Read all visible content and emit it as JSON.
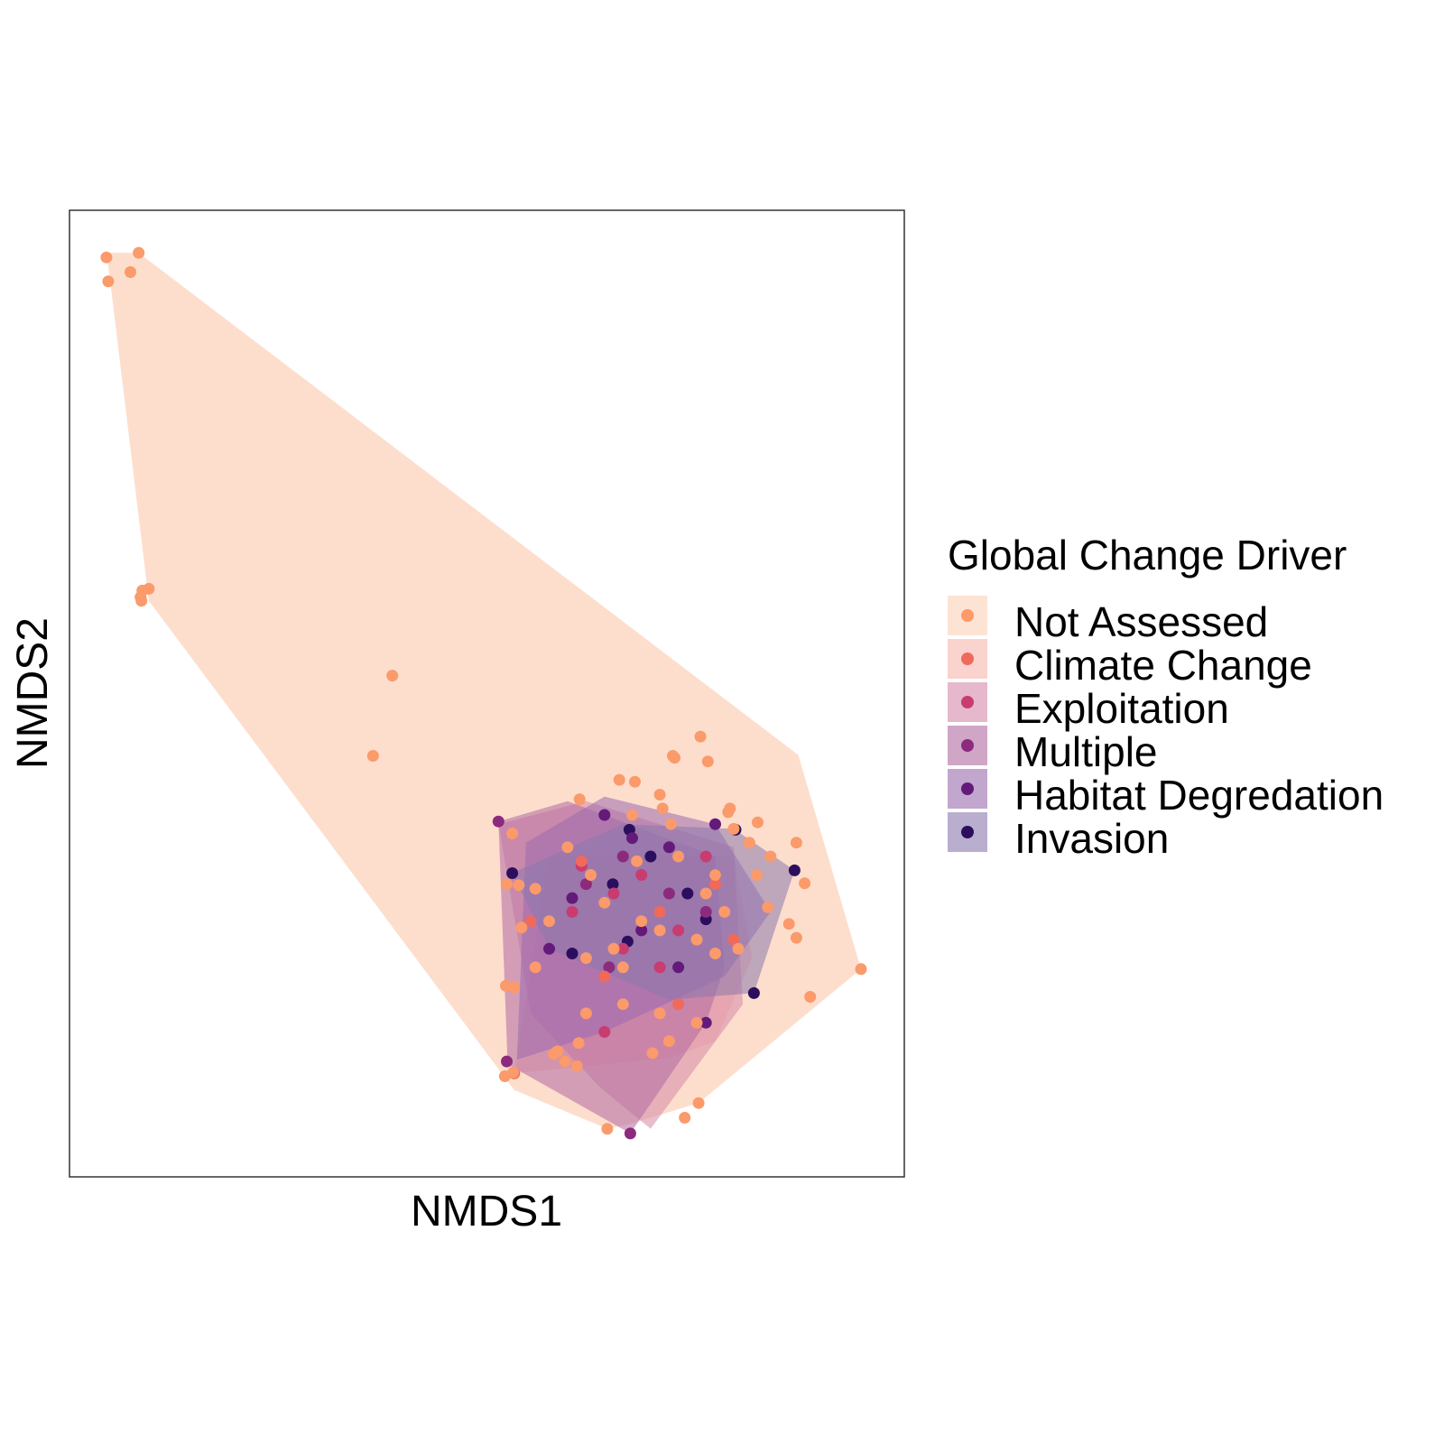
{
  "chart_data": {
    "type": "scatter",
    "title": "",
    "xlabel": "NMDS1",
    "ylabel": "NMDS2",
    "xlim": [
      0,
      905
    ],
    "ylim": [
      -1047,
      0
    ],
    "grid": false,
    "axis_ticks_shown": false,
    "legend": {
      "title": "Global Change Driver",
      "placement": "right",
      "entries": [
        "Not Assessed",
        "Climate Change",
        "Exploitation",
        "Multiple",
        "Habitat Degredation",
        "Invasion"
      ]
    },
    "series": [
      {
        "name": "Not Assessed",
        "point_color": "#fb9a6a",
        "fill_color": "#fcd0b8",
        "hull": [
          [
            40,
            -46
          ],
          [
            75,
            -46
          ],
          [
            790,
            -590
          ],
          [
            858,
            -822
          ],
          [
            682,
            -967
          ],
          [
            607,
            -990
          ],
          [
            583,
            -995
          ],
          [
            482,
            -953
          ],
          [
            86,
            -423
          ],
          [
            44,
            -76
          ]
        ],
        "points": [
          [
            40,
            -51
          ],
          [
            42,
            -77
          ],
          [
            66,
            -67
          ],
          [
            75,
            -46
          ],
          [
            77,
            -419
          ],
          [
            79,
            -412
          ],
          [
            86,
            -410
          ],
          [
            78,
            -423
          ],
          [
            350,
            -504
          ],
          [
            329,
            -591
          ],
          [
            656,
            -593
          ],
          [
            684,
            -570
          ],
          [
            692,
            -597
          ],
          [
            654,
            -591
          ],
          [
            596,
            -617
          ],
          [
            613,
            -619
          ],
          [
            553,
            -638
          ],
          [
            640,
            -633
          ],
          [
            643,
            -648
          ],
          [
            652,
            -665
          ],
          [
            714,
            -652
          ],
          [
            716,
            -648
          ],
          [
            720,
            -670
          ],
          [
            737,
            -685
          ],
          [
            746,
            -663
          ],
          [
            788,
            -685
          ],
          [
            797,
            -729
          ],
          [
            780,
            -773
          ],
          [
            788,
            -788
          ],
          [
            757,
            -755
          ],
          [
            858,
            -822
          ],
          [
            803,
            -852
          ],
          [
            682,
            -967
          ],
          [
            667,
            -983
          ],
          [
            583,
            -995
          ],
          [
            481,
            -934
          ],
          [
            472,
            -938
          ],
          [
            537,
            -922
          ],
          [
            632,
            -913
          ],
          [
            552,
            -902
          ],
          [
            525,
            -914
          ],
          [
            529,
            -911
          ],
          [
            474,
            -730
          ],
          [
            487,
            -731
          ],
          [
            482,
            -842
          ],
          [
            473,
            -840
          ],
          [
            550,
            -927
          ],
          [
            480,
            -675
          ],
          [
            490,
            -777
          ],
          [
            600,
            -820
          ],
          [
            650,
            -900
          ],
          [
            615,
            -705
          ],
          [
            565,
            -720
          ],
          [
            580,
            -750
          ],
          [
            620,
            -770
          ],
          [
            640,
            -780
          ],
          [
            590,
            -800
          ],
          [
            560,
            -810
          ],
          [
            700,
            -720
          ],
          [
            710,
            -760
          ],
          [
            725,
            -800
          ],
          [
            520,
            -770
          ],
          [
            505,
            -735
          ],
          [
            540,
            -690
          ],
          [
            610,
            -655
          ],
          [
            660,
            -700
          ],
          [
            690,
            -740
          ],
          [
            680,
            -790
          ],
          [
            600,
            -860
          ],
          [
            640,
            -870
          ],
          [
            680,
            -880
          ],
          [
            505,
            -820
          ],
          [
            560,
            -870
          ],
          [
            700,
            -805
          ],
          [
            745,
            -720
          ],
          [
            760,
            -700
          ]
        ]
      },
      {
        "name": "Climate Change",
        "point_color": "#ef6a5a",
        "fill_color": "#f7b4ad",
        "hull": [
          [
            482,
            -935
          ],
          [
            520,
            -700
          ],
          [
            720,
            -700
          ],
          [
            740,
            -810
          ],
          [
            700,
            -900
          ],
          [
            650,
            -918
          ]
        ],
        "points": [
          [
            482,
            -935
          ],
          [
            500,
            -770
          ],
          [
            555,
            -705
          ],
          [
            580,
            -830
          ],
          [
            640,
            -760
          ],
          [
            700,
            -730
          ],
          [
            720,
            -790
          ],
          [
            660,
            -860
          ]
        ]
      },
      {
        "name": "Exploitation",
        "point_color": "#c83c70",
        "fill_color": "#d688a8",
        "hull": [
          [
            465,
            -665
          ],
          [
            560,
            -640
          ],
          [
            720,
            -690
          ],
          [
            730,
            -860
          ],
          [
            630,
            -995
          ],
          [
            575,
            -950
          ],
          [
            500,
            -870
          ]
        ],
        "points": [
          [
            555,
            -710
          ],
          [
            590,
            -740
          ],
          [
            620,
            -720
          ],
          [
            660,
            -780
          ],
          [
            690,
            -700
          ],
          [
            600,
            -800
          ],
          [
            545,
            -760
          ],
          [
            580,
            -890
          ],
          [
            640,
            -820
          ]
        ]
      },
      {
        "name": "Multiple",
        "point_color": "#8c2a7e",
        "fill_color": "#b06aa2",
        "hull": [
          [
            465,
            -662
          ],
          [
            540,
            -640
          ],
          [
            700,
            -700
          ],
          [
            710,
            -820
          ],
          [
            690,
            -880
          ],
          [
            608,
            -1000
          ],
          [
            475,
            -925
          ]
        ],
        "points": [
          [
            465,
            -662
          ],
          [
            474,
            -922
          ],
          [
            608,
            -1000
          ],
          [
            560,
            -730
          ],
          [
            600,
            -700
          ],
          [
            650,
            -740
          ],
          [
            690,
            -760
          ],
          [
            585,
            -820
          ]
        ]
      },
      {
        "name": "Habitat Degredation",
        "point_color": "#631a7a",
        "fill_color": "#9a6aae",
        "hull": [
          [
            495,
            -685
          ],
          [
            580,
            -635
          ],
          [
            700,
            -665
          ],
          [
            760,
            -760
          ],
          [
            710,
            -830
          ],
          [
            580,
            -890
          ],
          [
            485,
            -920
          ]
        ],
        "points": [
          [
            580,
            -655
          ],
          [
            610,
            -680
          ],
          [
            650,
            -690
          ],
          [
            700,
            -665
          ],
          [
            545,
            -745
          ],
          [
            620,
            -780
          ],
          [
            660,
            -820
          ],
          [
            700,
            -720
          ],
          [
            690,
            -880
          ],
          [
            520,
            -800
          ]
        ]
      },
      {
        "name": "Invasion",
        "point_color": "#2c0e5e",
        "fill_color": "#8a78ad",
        "hull": [
          [
            480,
            -718
          ],
          [
            600,
            -665
          ],
          [
            720,
            -670
          ],
          [
            786,
            -715
          ],
          [
            742,
            -848
          ],
          [
            650,
            -855
          ],
          [
            520,
            -800
          ]
        ],
        "points": [
          [
            480,
            -718
          ],
          [
            607,
            -671
          ],
          [
            722,
            -671
          ],
          [
            786,
            -715
          ],
          [
            742,
            -848
          ],
          [
            589,
            -730
          ],
          [
            670,
            -740
          ],
          [
            630,
            -700
          ],
          [
            605,
            -792
          ],
          [
            545,
            -805
          ],
          [
            690,
            -768
          ]
        ]
      }
    ]
  }
}
